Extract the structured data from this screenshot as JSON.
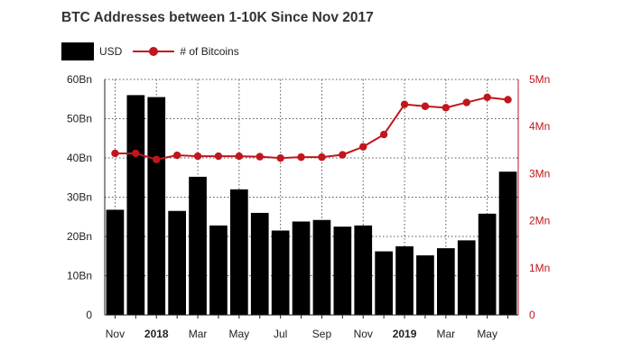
{
  "colors": {
    "bar": "#000000",
    "line": "#c0161c",
    "grid": "#555555",
    "axis": "#222222"
  },
  "chart_data": {
    "type": "bar",
    "title": "BTC Addresses between 1-10K Since Nov 2017",
    "x_tick_labels": [
      {
        "label": "Nov",
        "index": 0,
        "bold": false
      },
      {
        "label": "2018",
        "index": 2,
        "bold": true
      },
      {
        "label": "Mar",
        "index": 4,
        "bold": false
      },
      {
        "label": "May",
        "index": 6,
        "bold": false
      },
      {
        "label": "Jul",
        "index": 8,
        "bold": false
      },
      {
        "label": "Sep",
        "index": 10,
        "bold": false
      },
      {
        "label": "Nov",
        "index": 12,
        "bold": false
      },
      {
        "label": "2019",
        "index": 14,
        "bold": true
      },
      {
        "label": "Mar",
        "index": 16,
        "bold": false
      },
      {
        "label": "May",
        "index": 18,
        "bold": false
      }
    ],
    "series": [
      {
        "name": "USD",
        "type": "bar",
        "axis": "left",
        "values": [
          26.8,
          56.0,
          55.5,
          26.5,
          35.2,
          22.8,
          32.0,
          26.0,
          21.5,
          23.8,
          24.2,
          22.5,
          22.8,
          16.2,
          17.5,
          15.2,
          17.0,
          19.0,
          25.8,
          36.5
        ]
      },
      {
        "name": "# of Bitcoins",
        "type": "line",
        "axis": "right",
        "values": [
          3.43,
          3.43,
          3.3,
          3.39,
          3.37,
          3.37,
          3.37,
          3.36,
          3.33,
          3.35,
          3.35,
          3.4,
          3.57,
          3.83,
          4.47,
          4.43,
          4.4,
          4.51,
          4.62,
          4.57
        ]
      }
    ],
    "left_axis": {
      "ylim": [
        0,
        60
      ],
      "ticks": [
        "0",
        "10Bn",
        "20Bn",
        "30Bn",
        "40Bn",
        "50Bn",
        "60Bn"
      ]
    },
    "right_axis": {
      "ylim": [
        0,
        5
      ],
      "ticks": [
        "0",
        "1Mn",
        "2Mn",
        "3Mn",
        "4Mn",
        "5Mn"
      ]
    },
    "grid": true,
    "legend_position": "top-left"
  }
}
